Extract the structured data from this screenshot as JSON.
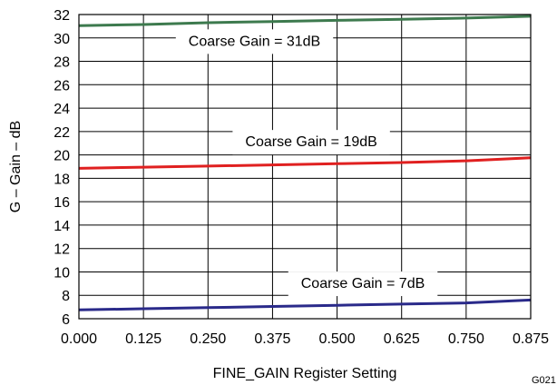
{
  "chart_data": {
    "type": "line",
    "title": "",
    "xlabel": "FINE_GAIN Register Setting",
    "ylabel": "G – Gain – dB",
    "figure_id": "G021",
    "xlim": [
      0,
      0.875
    ],
    "ylim": [
      6,
      32
    ],
    "x_ticks": [
      "0.000",
      "0.125",
      "0.250",
      "0.375",
      "0.500",
      "0.625",
      "0.750",
      "0.875"
    ],
    "y_ticks": [
      "6",
      "8",
      "10",
      "12",
      "14",
      "16",
      "18",
      "20",
      "22",
      "24",
      "26",
      "28",
      "30",
      "32"
    ],
    "grid": true,
    "x": [
      0,
      0.125,
      0.25,
      0.375,
      0.5,
      0.625,
      0.75,
      0.875
    ],
    "series": [
      {
        "color": "#3d7a4e",
        "values": [
          31.05,
          31.15,
          31.3,
          31.4,
          31.5,
          31.6,
          31.7,
          31.85
        ]
      },
      {
        "color": "#e02020",
        "values": [
          18.85,
          18.95,
          19.05,
          19.15,
          19.25,
          19.35,
          19.5,
          19.75
        ]
      },
      {
        "color": "#2a2a8a",
        "values": [
          6.75,
          6.85,
          6.95,
          7.05,
          7.15,
          7.25,
          7.35,
          7.6
        ]
      }
    ],
    "annotations": [
      {
        "text": "Coarse Gain = 31dB",
        "x": 0.34,
        "y": 29.8
      },
      {
        "text": "Coarse Gain = 19dB",
        "x": 0.45,
        "y": 21.2
      },
      {
        "text": "Coarse Gain = 7dB",
        "x": 0.55,
        "y": 9.1
      }
    ]
  }
}
